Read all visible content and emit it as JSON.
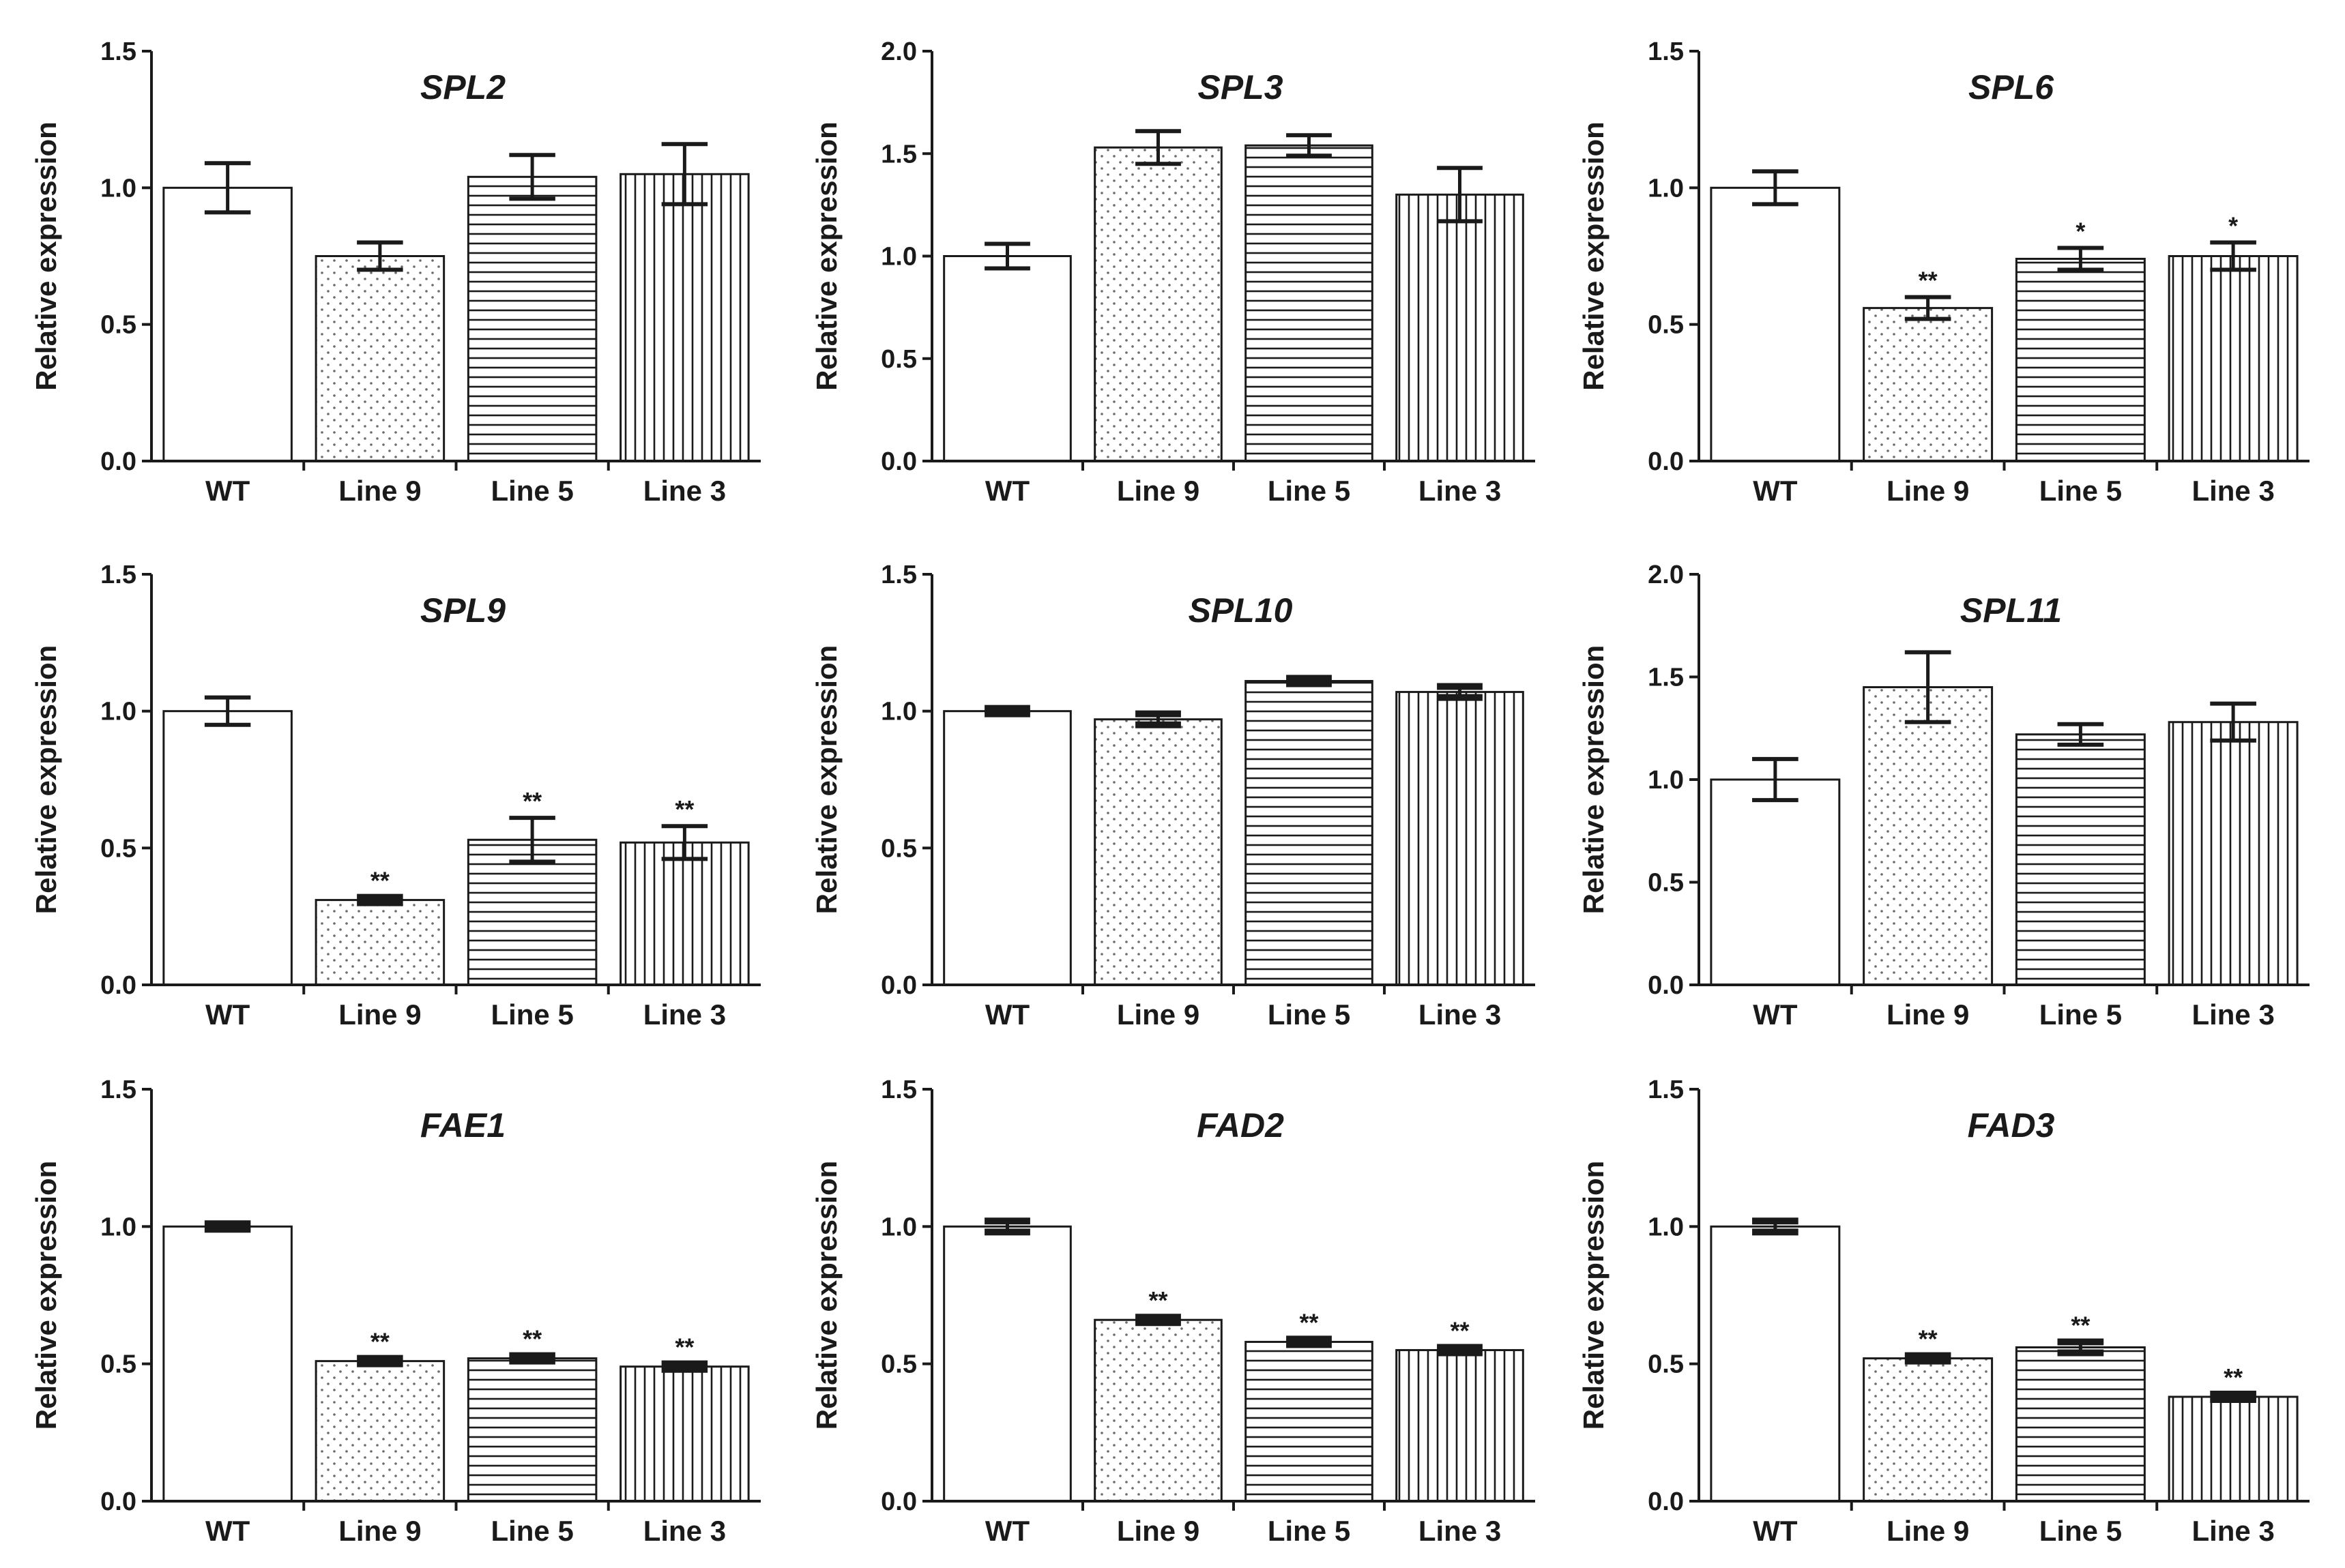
{
  "chart_data": [
    {
      "type": "bar",
      "title": "SPL2",
      "xlabel": "",
      "ylabel": "Relative expression",
      "categories": [
        "WT",
        "Line 9",
        "Line 5",
        "Line 3"
      ],
      "values": [
        1.0,
        0.75,
        1.04,
        1.05
      ],
      "errors": [
        0.09,
        0.05,
        0.08,
        0.11
      ],
      "significance": [
        "",
        "",
        "",
        ""
      ],
      "ylim": [
        0,
        1.5
      ],
      "yticks": [
        "0.0",
        "0.5",
        "1.0",
        "1.5"
      ],
      "ytick_values": [
        0,
        0.5,
        1.0,
        1.5
      ],
      "grid": false
    },
    {
      "type": "bar",
      "title": "SPL3",
      "xlabel": "",
      "ylabel": "Relative expression",
      "categories": [
        "WT",
        "Line 9",
        "Line 5",
        "Line 3"
      ],
      "values": [
        1.0,
        1.53,
        1.54,
        1.3
      ],
      "errors": [
        0.06,
        0.08,
        0.05,
        0.13
      ],
      "significance": [
        "",
        "",
        "",
        ""
      ],
      "ylim": [
        0,
        2.0
      ],
      "yticks": [
        "0.0",
        "0.5",
        "1.0",
        "1.5",
        "2.0"
      ],
      "ytick_values": [
        0,
        0.5,
        1.0,
        1.5,
        2.0
      ],
      "grid": false
    },
    {
      "type": "bar",
      "title": "SPL6",
      "xlabel": "",
      "ylabel": "Relative expression",
      "categories": [
        "WT",
        "Line 9",
        "Line 5",
        "Line 3"
      ],
      "values": [
        1.0,
        0.56,
        0.74,
        0.75
      ],
      "errors": [
        0.06,
        0.04,
        0.04,
        0.05
      ],
      "significance": [
        "",
        "**",
        "*",
        "*"
      ],
      "ylim": [
        0,
        1.5
      ],
      "yticks": [
        "0.0",
        "0.5",
        "1.0",
        "1.5"
      ],
      "ytick_values": [
        0,
        0.5,
        1.0,
        1.5
      ],
      "grid": false
    },
    {
      "type": "bar",
      "title": "SPL9",
      "xlabel": "",
      "ylabel": "Relative expression",
      "categories": [
        "WT",
        "Line 9",
        "Line 5",
        "Line 3"
      ],
      "values": [
        1.0,
        0.31,
        0.53,
        0.52
      ],
      "errors": [
        0.05,
        0.01,
        0.08,
        0.06
      ],
      "significance": [
        "",
        "**",
        "**",
        "**"
      ],
      "ylim": [
        0,
        1.5
      ],
      "yticks": [
        "0.0",
        "0.5",
        "1.0",
        "1.5"
      ],
      "ytick_values": [
        0,
        0.5,
        1.0,
        1.5
      ],
      "grid": false
    },
    {
      "type": "bar",
      "title": "SPL10",
      "xlabel": "",
      "ylabel": "Relative expression",
      "categories": [
        "WT",
        "Line 9",
        "Line 5",
        "Line 3"
      ],
      "values": [
        1.0,
        0.97,
        1.11,
        1.07
      ],
      "errors": [
        0.01,
        0.02,
        0.01,
        0.02
      ],
      "significance": [
        "",
        "",
        "",
        ""
      ],
      "ylim": [
        0,
        1.5
      ],
      "yticks": [
        "0.0",
        "0.5",
        "1.0",
        "1.5"
      ],
      "ytick_values": [
        0,
        0.5,
        1.0,
        1.5
      ],
      "grid": false
    },
    {
      "type": "bar",
      "title": "SPL11",
      "xlabel": "",
      "ylabel": "Relative expression",
      "categories": [
        "WT",
        "Line 9",
        "Line 5",
        "Line 3"
      ],
      "values": [
        1.0,
        1.45,
        1.22,
        1.28
      ],
      "errors": [
        0.1,
        0.17,
        0.05,
        0.09
      ],
      "significance": [
        "",
        "",
        "",
        ""
      ],
      "ylim": [
        0,
        2.0
      ],
      "yticks": [
        "0.0",
        "0.5",
        "1.0",
        "1.5",
        "2.0"
      ],
      "ytick_values": [
        0,
        0.5,
        1.0,
        1.5,
        2.0
      ],
      "grid": false
    },
    {
      "type": "bar",
      "title": "FAE1",
      "xlabel": "",
      "ylabel": "Relative expression",
      "categories": [
        "WT",
        "Line 9",
        "Line 5",
        "Line 3"
      ],
      "values": [
        1.0,
        0.51,
        0.52,
        0.49
      ],
      "errors": [
        0.01,
        0.01,
        0.01,
        0.01
      ],
      "significance": [
        "",
        "**",
        "**",
        "**"
      ],
      "ylim": [
        0,
        1.5
      ],
      "yticks": [
        "0.0",
        "0.5",
        "1.0",
        "1.5"
      ],
      "ytick_values": [
        0,
        0.5,
        1.0,
        1.5
      ],
      "grid": false
    },
    {
      "type": "bar",
      "title": "FAD2",
      "xlabel": "",
      "ylabel": "Relative expression",
      "categories": [
        "WT",
        "Line 9",
        "Line 5",
        "Line 3"
      ],
      "values": [
        1.0,
        0.66,
        0.58,
        0.55
      ],
      "errors": [
        0.02,
        0.01,
        0.01,
        0.01
      ],
      "significance": [
        "",
        "**",
        "**",
        "**"
      ],
      "ylim": [
        0,
        1.5
      ],
      "yticks": [
        "0.0",
        "0.5",
        "1.0",
        "1.5"
      ],
      "ytick_values": [
        0,
        0.5,
        1.0,
        1.5
      ],
      "grid": false
    },
    {
      "type": "bar",
      "title": "FAD3",
      "xlabel": "",
      "ylabel": "Relative expression",
      "categories": [
        "WT",
        "Line 9",
        "Line 5",
        "Line 3"
      ],
      "values": [
        1.0,
        0.52,
        0.56,
        0.38
      ],
      "errors": [
        0.02,
        0.01,
        0.02,
        0.01
      ],
      "significance": [
        "",
        "**",
        "**",
        "**"
      ],
      "ylim": [
        0,
        1.5
      ],
      "yticks": [
        "0.0",
        "0.5",
        "1.0",
        "1.5"
      ],
      "ytick_values": [
        0,
        0.5,
        1.0,
        1.5
      ],
      "grid": false
    }
  ],
  "bar_patterns": [
    "none",
    "dots",
    "horizontal-lines",
    "vertical-lines"
  ],
  "colors": {
    "ink": "#1a1a1a",
    "bar_fill": "#ffffff",
    "background": "#ffffff"
  }
}
